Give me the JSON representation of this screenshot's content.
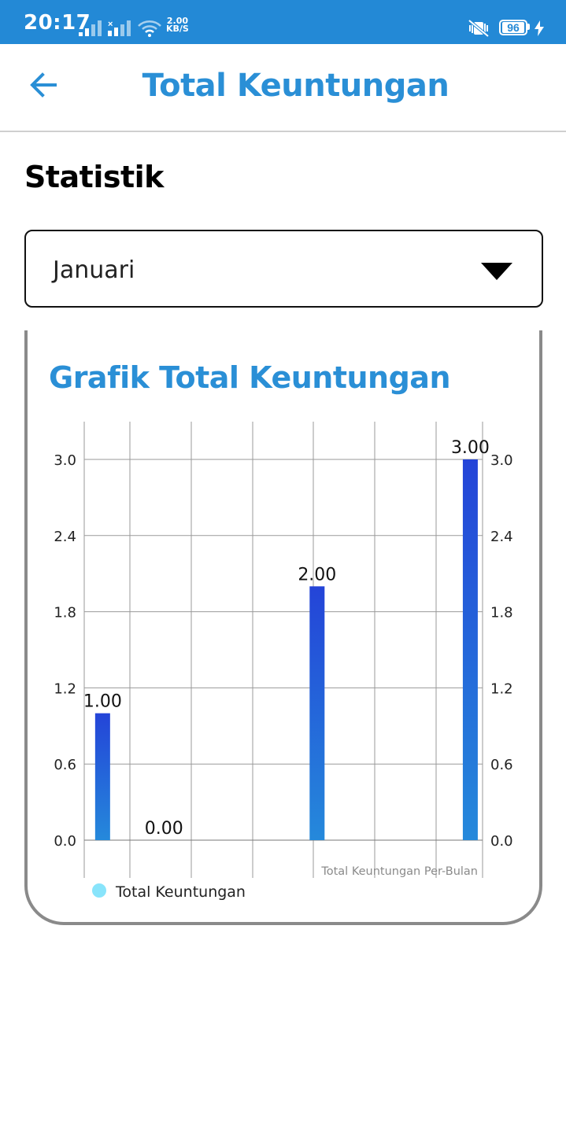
{
  "status_bar": {
    "time": "20:17",
    "speed_value": "2.00",
    "speed_unit": "KB/S",
    "battery": "96"
  },
  "app_bar": {
    "title": "Total Keuntungan",
    "back_icon": "arrow-left-icon"
  },
  "section_title": "Statistik",
  "month_dropdown": {
    "selected": "Januari",
    "icon": "caret-down-icon"
  },
  "card": {
    "title": "Grafik Total Keuntungan"
  },
  "colors": {
    "primary": "#2389d6",
    "title_blue": "#2a8fd6",
    "bar_top": "#2444d8",
    "bar_bottom": "#2589db",
    "legend_dot": "#88e4fb"
  },
  "chart_data": {
    "type": "bar",
    "x": [
      0,
      1,
      3.5,
      6
    ],
    "values": [
      1.0,
      0.0,
      2.0,
      3.0
    ],
    "value_labels": [
      "1.00",
      "0.00",
      "2.00",
      "3.00"
    ],
    "ylim": [
      0,
      3.0
    ],
    "y_ticks": [
      "0.0",
      "0.6",
      "1.2",
      "1.8",
      "2.4",
      "3.0"
    ],
    "y_tick_values": [
      0,
      0.6,
      1.2,
      1.8,
      2.4,
      3.0
    ],
    "y_axis_right": true,
    "grid": true,
    "description": "Total Keuntungan Per-Bulan",
    "legend": [
      {
        "name": "Total Keuntungan"
      }
    ],
    "legend_position": "bottom-left"
  }
}
